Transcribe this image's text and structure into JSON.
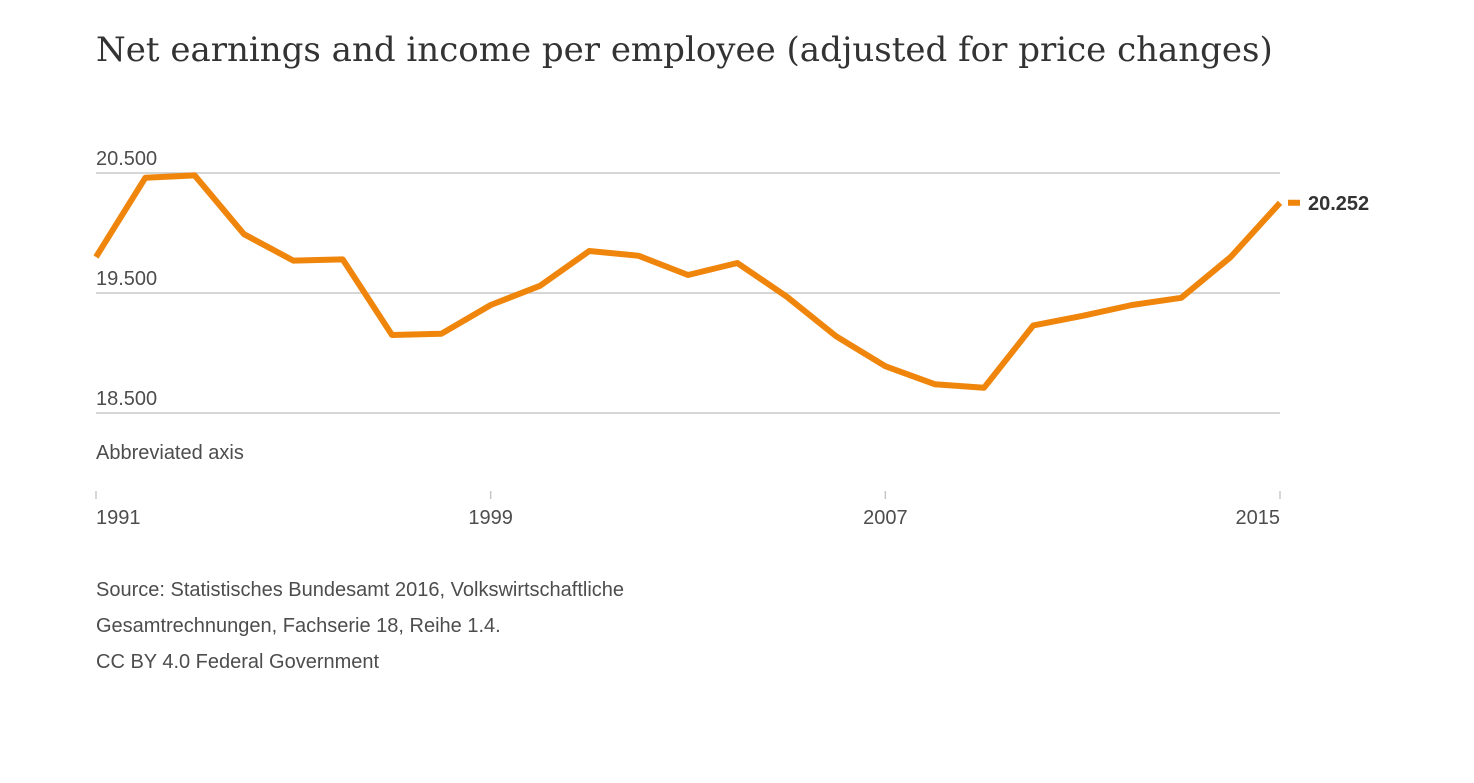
{
  "chart_data": {
    "type": "line",
    "title": "Net earnings and income per employee (adjusted for price changes)",
    "axis_note": "Abbreviated axis",
    "x": [
      1991,
      1992,
      1993,
      1994,
      1995,
      1996,
      1997,
      1998,
      1999,
      2000,
      2001,
      2002,
      2003,
      2004,
      2005,
      2006,
      2007,
      2008,
      2009,
      2010,
      2011,
      2012,
      2013,
      2014,
      2015
    ],
    "series": [
      {
        "values": [
          19800,
          20460,
          20480,
          19990,
          19770,
          19780,
          19150,
          19160,
          19400,
          19560,
          19850,
          19810,
          19650,
          19750,
          19470,
          19140,
          18890,
          18740,
          18710,
          19230,
          19310,
          19400,
          19460,
          19800,
          20252
        ],
        "color": "#f0850c"
      }
    ],
    "y_ticks": [
      {
        "value": 18500,
        "label": "18.500"
      },
      {
        "value": 19500,
        "label": "19.500"
      },
      {
        "value": 20500,
        "label": "20.500"
      }
    ],
    "x_ticks": [
      {
        "value": 1991,
        "label": "1991"
      },
      {
        "value": 1999,
        "label": "1999"
      },
      {
        "value": 2007,
        "label": "2007"
      },
      {
        "value": 2015,
        "label": "2015"
      }
    ],
    "ylim": [
      18500,
      20500
    ],
    "xlim": [
      1991,
      2015
    ],
    "grid": true,
    "end_label": "20.252"
  },
  "source": {
    "lines": [
      "Source: Statistisches Bundesamt 2016, Volkswirtschaftliche",
      "Gesamtrechnungen, Fachserie 18, Reihe 1.4.",
      "CC BY 4.0 Federal Government"
    ]
  }
}
